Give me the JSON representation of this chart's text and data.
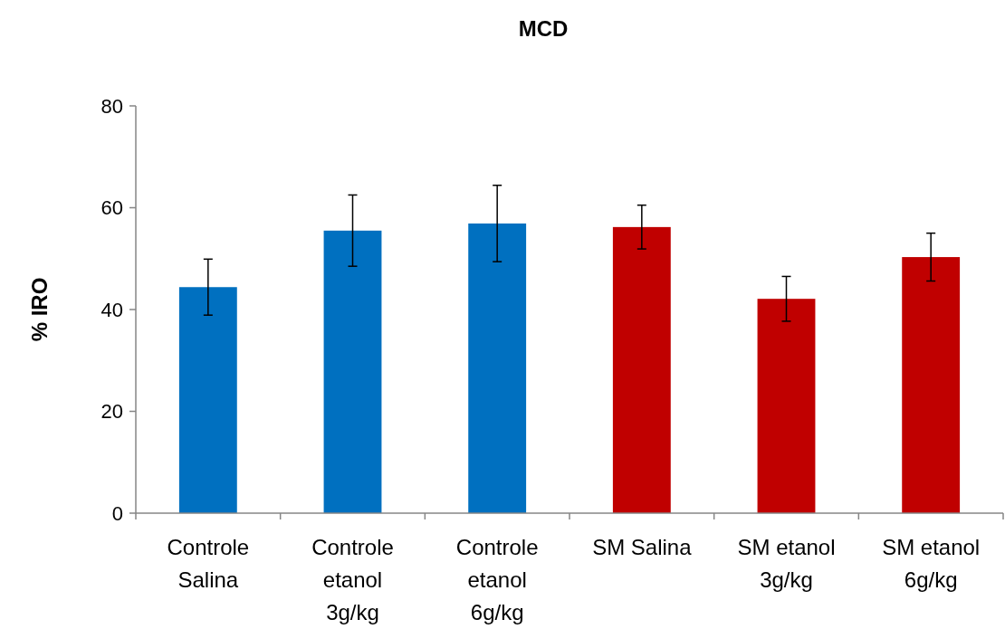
{
  "chart_data": {
    "type": "bar",
    "title": "MCD",
    "ylabel": "% IRO",
    "categories": [
      "Controle Salina",
      "Controle etanol 3g/kg",
      "Controle etanol 6g/kg",
      "SM Salina",
      "SM etanol 3g/kg",
      "SM etanol 6g/kg"
    ],
    "values": [
      44.4,
      55.5,
      56.9,
      56.2,
      42.1,
      50.3
    ],
    "errors": [
      5.5,
      7,
      7.5,
      4.3,
      4.4,
      4.7
    ],
    "colors": [
      "#0070c0",
      "#0070c0",
      "#0070c0",
      "#c00000",
      "#c00000",
      "#c00000"
    ],
    "ylim": [
      0,
      80
    ],
    "yticks": [
      0,
      20,
      40,
      60,
      80
    ]
  }
}
